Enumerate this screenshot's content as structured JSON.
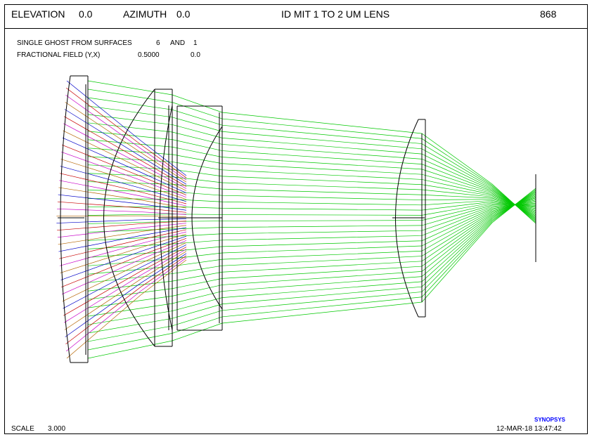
{
  "header": {
    "elevation_label": "ELEVATION",
    "elevation_value": "0.0",
    "azimuth_label": "AZIMUTH",
    "azimuth_value": "0.0",
    "title": "ID MIT 1 TO 2 UM LENS",
    "code": "868"
  },
  "info": {
    "ghost_label": "SINGLE GHOST FROM SURFACES",
    "ghost_surface_a": "6",
    "ghost_and": "AND",
    "ghost_surface_b": "1",
    "field_label": "FRACTIONAL FIELD (Y,X)",
    "field_y": "0.5000",
    "field_x": "0.0"
  },
  "footer": {
    "scale_label": "SCALE",
    "scale_value": "3.000",
    "brand": "SYNOPSYS",
    "datetime": "12-MAR-18  13:47:42"
  },
  "colors": {
    "lens_outline": "#000000",
    "ghost_rays": "#00c800",
    "ray_blue": "#0000c8",
    "ray_red": "#c80000",
    "ray_magenta": "#c800c8",
    "ray_brown": "#b46400",
    "brand": "#0000ff"
  }
}
